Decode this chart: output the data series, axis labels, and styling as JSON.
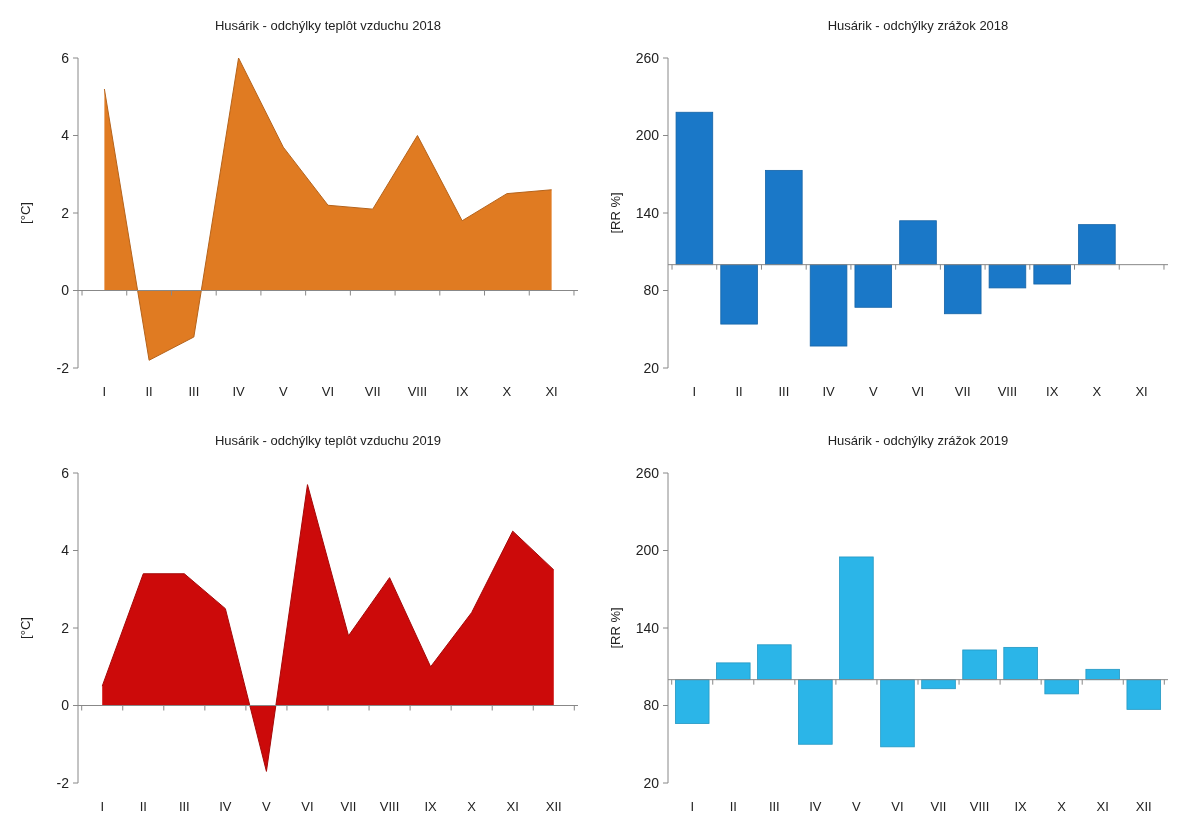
{
  "chart_data": [
    {
      "type": "area",
      "title": "Husárik - odchýlky teplôt vzduchu  2018",
      "ylabel": "[°C]",
      "categories": [
        "I",
        "II",
        "III",
        "IV",
        "V",
        "VI",
        "VII",
        "VIII",
        "IX",
        "X",
        "XI"
      ],
      "values": [
        5.2,
        -1.8,
        -1.2,
        6.0,
        3.7,
        2.2,
        2.1,
        4.0,
        1.8,
        2.5,
        2.6
      ],
      "color": "#e07b22",
      "ylim": [
        -2,
        6
      ],
      "yticks": [
        -2,
        0,
        2,
        4,
        6
      ],
      "ref_lines": [
        {
          "axis": "y",
          "value": 0,
          "color": "#888888"
        }
      ]
    },
    {
      "type": "bar",
      "title": "Husárik - odchýlky zrážok 2018",
      "ylabel": "[RR %]",
      "categories": [
        "I",
        "II",
        "III",
        "IV",
        "V",
        "VI",
        "VII",
        "VIII",
        "IX",
        "X",
        "XI"
      ],
      "base": [
        100,
        100,
        100,
        100,
        100,
        100,
        100,
        100,
        100,
        100,
        null
      ],
      "values": [
        118,
        -46,
        73,
        -63,
        -33,
        34,
        -38,
        -18,
        -15,
        31,
        null
      ],
      "color": "#1a78c8",
      "ylim": [
        20,
        260
      ],
      "yticks": [
        20,
        80,
        140,
        200,
        260
      ],
      "ref_lines": [
        {
          "axis": "y",
          "value": 100,
          "color": "#888888"
        }
      ]
    },
    {
      "type": "area",
      "title": "Husárik - odchýlky teplôt vzduchu  2019",
      "ylabel": "[°C]",
      "categories": [
        "I",
        "II",
        "III",
        "IV",
        "V",
        "VI",
        "VII",
        "VIII",
        "IX",
        "X",
        "XI",
        "XII"
      ],
      "values": [
        0.5,
        3.4,
        3.4,
        2.5,
        -1.7,
        5.7,
        1.8,
        3.3,
        1.0,
        2.4,
        4.5,
        3.5
      ],
      "color": "#cc0a0a",
      "ylim": [
        -2,
        6
      ],
      "yticks": [
        -2,
        0,
        2,
        4,
        6
      ],
      "ref_lines": [
        {
          "axis": "y",
          "value": 0,
          "color": "#888888"
        }
      ]
    },
    {
      "type": "bar",
      "title": "Husárik - odchýlky zrážok 2019",
      "ylabel": "[RR %]",
      "categories": [
        "I",
        "II",
        "III",
        "IV",
        "V",
        "VI",
        "VII",
        "VIII",
        "IX",
        "X",
        "XI",
        "XII"
      ],
      "base": [
        100,
        100,
        100,
        100,
        100,
        100,
        100,
        100,
        100,
        100,
        100,
        100
      ],
      "values": [
        -34,
        13,
        27,
        -50,
        95,
        -52,
        -7,
        23,
        25,
        -11,
        8,
        -23
      ],
      "color": "#2bb5e8",
      "ylim": [
        20,
        260
      ],
      "yticks": [
        20,
        80,
        140,
        200,
        260
      ],
      "ref_lines": [
        {
          "axis": "y",
          "value": 100,
          "color": "#888888"
        }
      ]
    }
  ]
}
